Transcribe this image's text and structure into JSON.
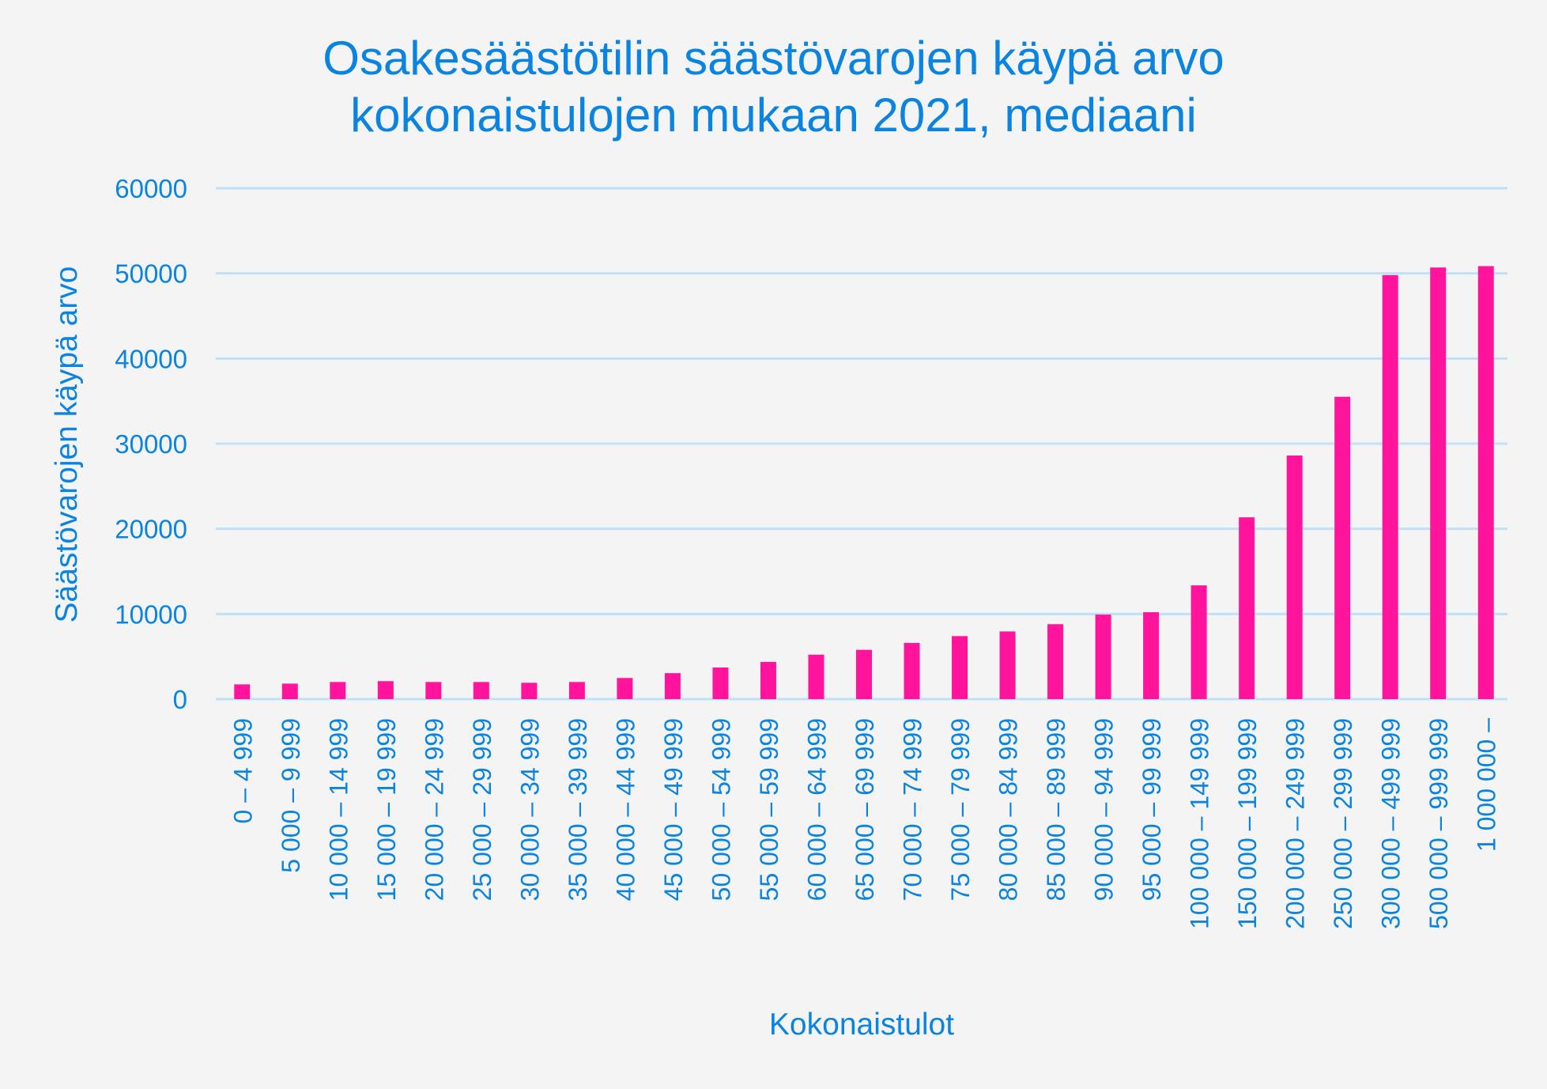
{
  "chart_data": {
    "type": "bar",
    "title": [
      "Osakesäästötilin säästövarojen käypä arvo",
      "kokonaistulojen mukaan 2021, mediaani"
    ],
    "xlabel": "Kokonaistulot",
    "ylabel": "Säästövarojen käypä arvo",
    "ylim": [
      0,
      60000
    ],
    "yticks": [
      "0",
      "10000",
      "20000",
      "30000",
      "40000",
      "50000",
      "60000"
    ],
    "ytick_values": [
      0,
      10000,
      20000,
      30000,
      40000,
      50000,
      60000
    ],
    "grid": true,
    "categories": [
      "0 – 4 999",
      "5 000 – 9 999",
      "10 000 – 14 999",
      "15 000 – 19 999",
      "20 000 – 24 999",
      "25 000 – 29 999",
      "30 000 – 34 999",
      "35 000 – 39 999",
      "40 000 – 44 999",
      "45 000 – 49 999",
      "50 000 – 54 999",
      "55 000 – 59 999",
      "60 000 – 64 999",
      "65 000 – 69 999",
      "70 000 – 74 999",
      "75 000 – 79 999",
      "80 000 – 84 999",
      "85 000 – 89 999",
      "90 000 – 94 999",
      "95 000 – 99 999",
      "100 000 – 149 999",
      "150 000 – 199 999",
      "200 000 – 249 999",
      "250 000 – 299 999",
      "300 000 – 499 999",
      "500 000 – 999 999",
      "1 000 000 –"
    ],
    "values": [
      1730,
      1820,
      2010,
      2110,
      2010,
      2010,
      1920,
      2010,
      2480,
      3050,
      3710,
      4370,
      5220,
      5790,
      6600,
      7400,
      7950,
      8800,
      9930,
      10210,
      13360,
      21350,
      28610,
      35510,
      49800,
      50690,
      50850
    ],
    "colors": {
      "bar": "#ff149b",
      "text": "#0a84e0",
      "grid": "#bfe0f7",
      "background": "#f4f4f4"
    }
  }
}
